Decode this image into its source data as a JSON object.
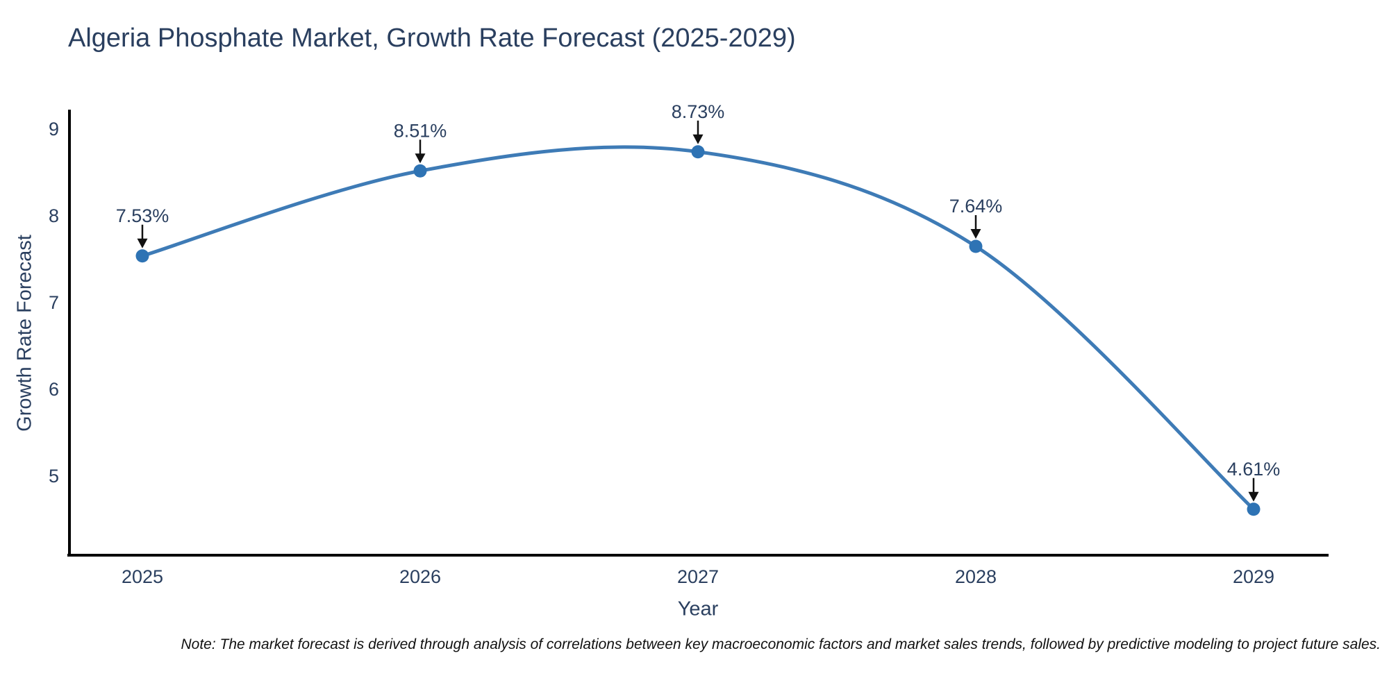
{
  "title": "Algeria Phosphate Market, Growth Rate Forecast (2025-2029)",
  "note": "Note: The market forecast is derived through analysis of correlations between key macroeconomic factors and market sales trends, followed by predictive modeling to project future sales.",
  "chart_data": {
    "type": "line",
    "line_shape": "spline",
    "title": "Algeria Phosphate Market, Growth Rate Forecast (2025-2029)",
    "categories": [
      "2025",
      "2026",
      "2027",
      "2028",
      "2029"
    ],
    "values": [
      7.53,
      8.51,
      8.73,
      7.64,
      4.61
    ],
    "point_labels": [
      "7.53%",
      "8.51%",
      "8.73%",
      "7.64%",
      "4.61%"
    ],
    "xlabel": "Year",
    "ylabel": "Growth Rate Forecast",
    "yticks": [
      9,
      8,
      7,
      6,
      5
    ],
    "ylim": [
      4.08,
      9.22
    ],
    "grid": false,
    "legend": false,
    "annotation_style": "value label with downward black arrow onto each marker",
    "colors": {
      "line": "#3e7bb6",
      "marker": "#2e73b4",
      "axis": "#000000",
      "tick_text": "#2a3f5f",
      "title_text": "#2a3f5f",
      "annotation_text": "#2a3f5f",
      "arrow": "#111111",
      "note_text": "#111111",
      "background": "#ffffff"
    }
  }
}
